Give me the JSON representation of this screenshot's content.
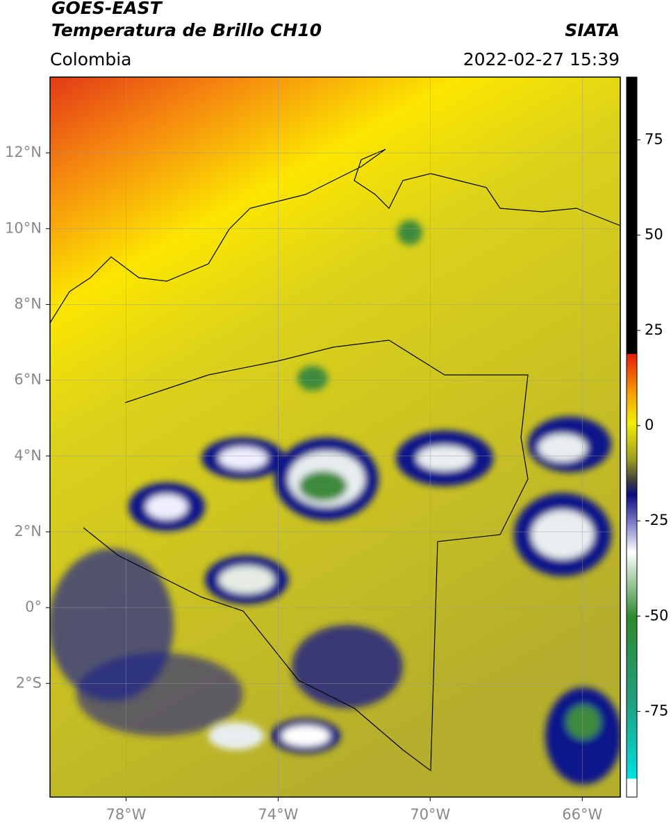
{
  "header": {
    "satellite": "GOES-EAST",
    "product": "Temperatura de Brillo CH10",
    "institution": "SIATA",
    "region": "Colombia",
    "datetime": "2022-02-27 15:39"
  },
  "map": {
    "xlim": [
      -80,
      -65
    ],
    "ylim": [
      -5,
      14
    ],
    "xticks": [
      {
        "value": -78,
        "label": "78°W"
      },
      {
        "value": -74,
        "label": "74°W"
      },
      {
        "value": -70,
        "label": "70°W"
      },
      {
        "value": -66,
        "label": "66°W"
      }
    ],
    "yticks": [
      {
        "value": 12,
        "label": "12°N"
      },
      {
        "value": 10,
        "label": "10°N"
      },
      {
        "value": 8,
        "label": "8°N"
      },
      {
        "value": 6,
        "label": "6°N"
      },
      {
        "value": 4,
        "label": "4°N"
      },
      {
        "value": 2,
        "label": "2°N"
      },
      {
        "value": 0,
        "label": "0°"
      },
      {
        "value": -2,
        "label": "2°S"
      }
    ],
    "grid": true
  },
  "colorbar": {
    "lim": [
      -97.5,
      91.5
    ],
    "ticks": [
      75,
      50,
      25,
      0,
      -25,
      -50,
      -75
    ]
  }
}
